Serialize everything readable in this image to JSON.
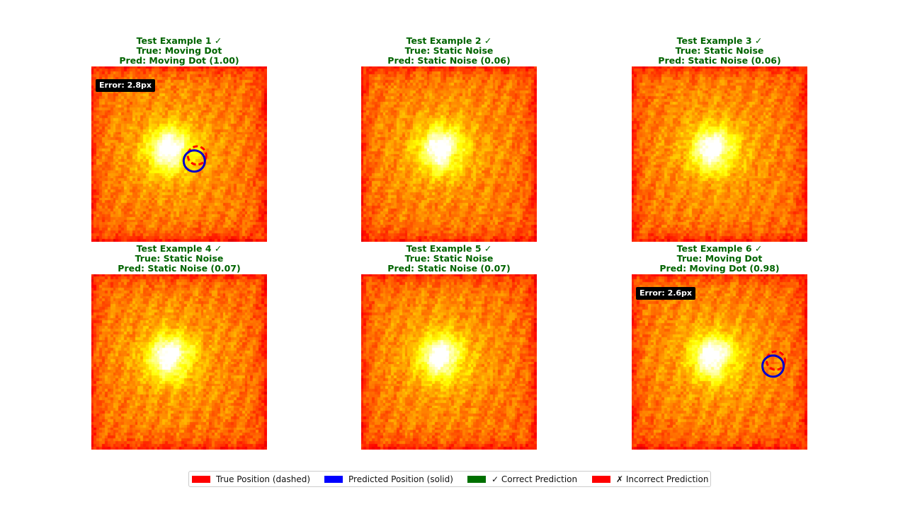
{
  "chart_data": {
    "type": "heatmap",
    "layout": {
      "rows": 2,
      "cols": 3
    },
    "panels": [
      {
        "title": "Test Example 1 ✓",
        "true_label": "True: Moving Dot",
        "pred_label": "Pred: Moving Dot (1.00)",
        "correct": true,
        "has_dot": true,
        "error_label": "Error: 2.8px",
        "true_pos": [
          38,
          32
        ],
        "pred_pos": [
          37,
          34
        ]
      },
      {
        "title": "Test Example 2 ✓",
        "true_label": "True: Static Noise",
        "pred_label": "Pred: Static Noise (0.06)",
        "correct": true,
        "has_dot": false
      },
      {
        "title": "Test Example 3 ✓",
        "true_label": "True: Static Noise",
        "pred_label": "Pred: Static Noise (0.06)",
        "correct": true,
        "has_dot": false
      },
      {
        "title": "Test Example 4 ✓",
        "true_label": "True: Static Noise",
        "pred_label": "Pred: Static Noise (0.07)",
        "correct": true,
        "has_dot": false
      },
      {
        "title": "Test Example 5 ✓",
        "true_label": "True: Static Noise",
        "pred_label": "Pred: Static Noise (0.07)",
        "correct": true,
        "has_dot": false
      },
      {
        "title": "Test Example 6 ✓",
        "true_label": "True: Moving Dot",
        "pred_label": "Pred: Moving Dot (0.98)",
        "correct": true,
        "has_dot": true,
        "error_label": "Error: 2.6px",
        "true_pos": [
          52,
          31
        ],
        "pred_pos": [
          51,
          33
        ]
      }
    ],
    "legend": [
      {
        "label": "True Position (dashed)",
        "color": "#ff0000"
      },
      {
        "label": "Predicted Position (solid)",
        "color": "#0000ff"
      },
      {
        "label": "✓ Correct Prediction",
        "color": "#007000"
      },
      {
        "label": "✗ Incorrect Prediction",
        "color": "#ff0000"
      }
    ],
    "colors": {
      "correct_title": "#006400",
      "true_marker": "#ff0000",
      "pred_marker": "#0000cc"
    },
    "colormap": "hot",
    "grid": false
  }
}
